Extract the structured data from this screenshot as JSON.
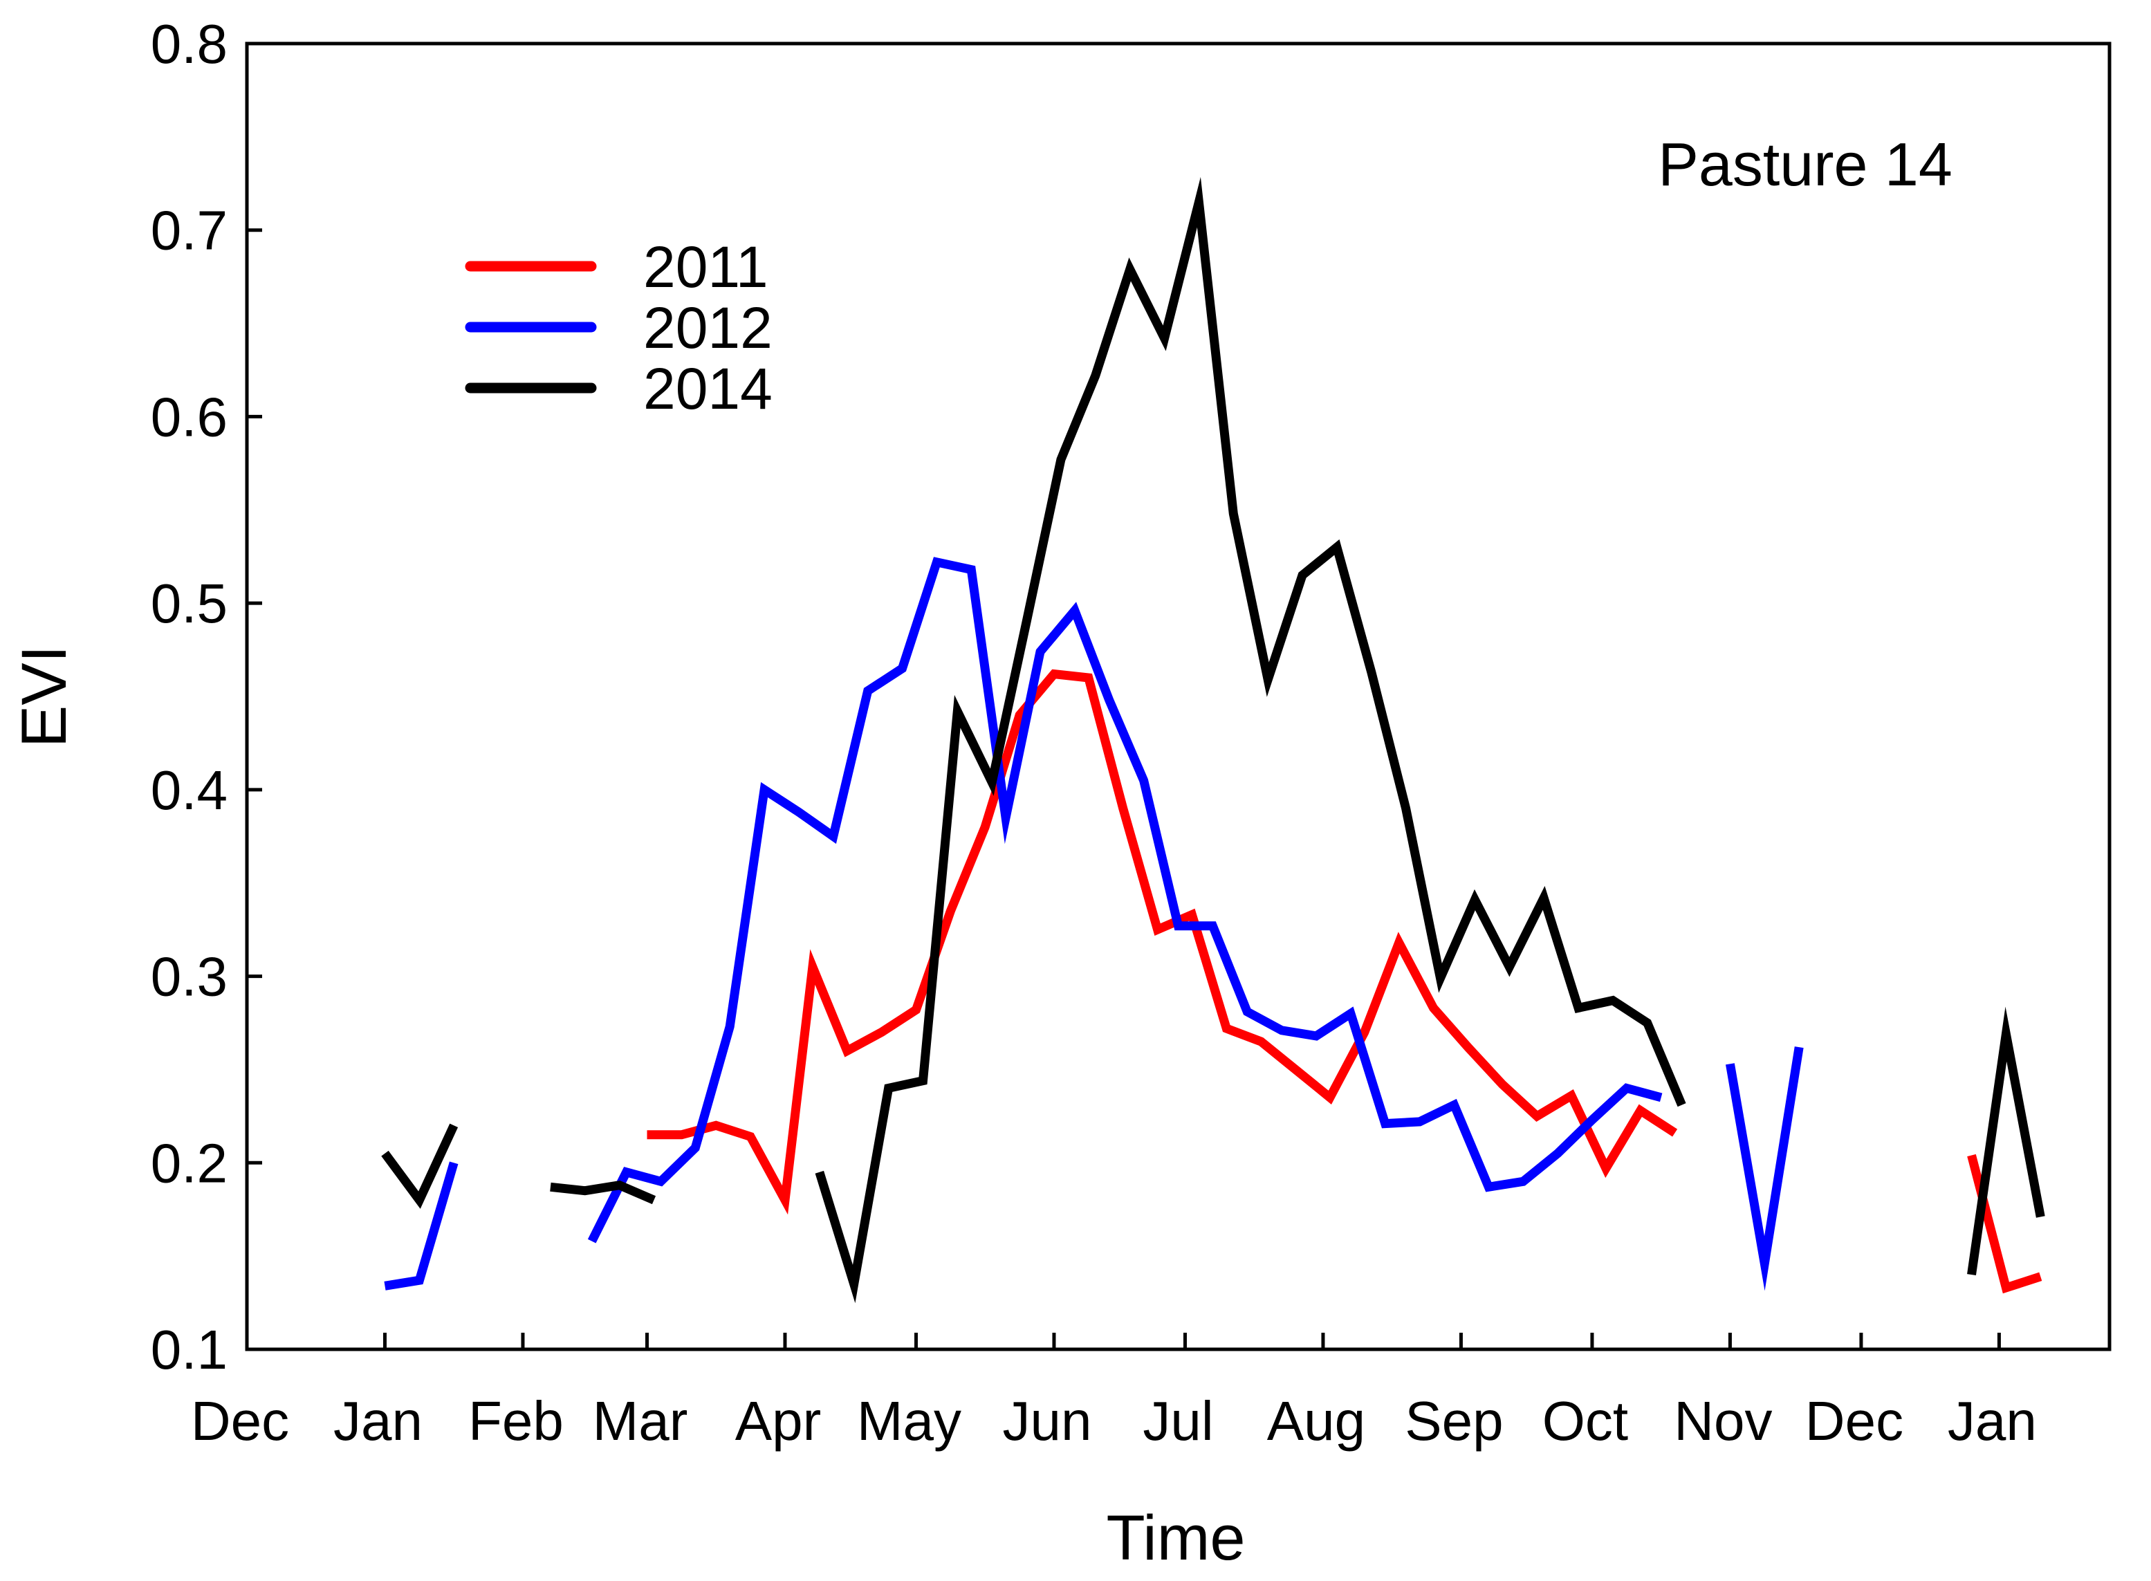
{
  "chart_data": {
    "type": "line",
    "title": "",
    "annotation": "Pasture 14",
    "xlabel": "Time",
    "ylabel": "EVI",
    "ylim": [
      0.1,
      0.8
    ],
    "yticks": [
      "0.1",
      "0.2",
      "0.3",
      "0.4",
      "0.5",
      "0.6",
      "0.7",
      "0.8"
    ],
    "xlim": [
      0,
      13.5
    ],
    "xticks": [
      {
        "value": 0.0,
        "label": "Dec"
      },
      {
        "value": 1.0,
        "label": "Jan"
      },
      {
        "value": 2.0,
        "label": "Feb"
      },
      {
        "value": 2.9,
        "label": "Mar"
      },
      {
        "value": 3.9,
        "label": "Apr"
      },
      {
        "value": 4.85,
        "label": "May"
      },
      {
        "value": 5.85,
        "label": "Jun"
      },
      {
        "value": 6.8,
        "label": "Jul"
      },
      {
        "value": 7.8,
        "label": "Aug"
      },
      {
        "value": 8.8,
        "label": "Sep"
      },
      {
        "value": 9.75,
        "label": "Oct"
      },
      {
        "value": 10.75,
        "label": "Nov"
      },
      {
        "value": 11.7,
        "label": "Dec"
      },
      {
        "value": 12.7,
        "label": "Jan"
      }
    ],
    "grid": false,
    "legend_position": "top-left",
    "series": [
      {
        "name": "2011",
        "color": "#ff0000",
        "segments": [
          [
            [
              2.9,
              0.215
            ],
            [
              3.15,
              0.215
            ],
            [
              3.4,
              0.22
            ],
            [
              3.65,
              0.214
            ],
            [
              3.9,
              0.18
            ],
            [
              4.1,
              0.305
            ],
            [
              4.35,
              0.26
            ],
            [
              4.6,
              0.27
            ],
            [
              4.85,
              0.282
            ],
            [
              5.1,
              0.335
            ],
            [
              5.35,
              0.38
            ],
            [
              5.6,
              0.44
            ],
            [
              5.85,
              0.462
            ],
            [
              6.1,
              0.46
            ],
            [
              6.35,
              0.39
            ],
            [
              6.6,
              0.325
            ],
            [
              6.85,
              0.333
            ],
            [
              7.1,
              0.272
            ],
            [
              7.35,
              0.265
            ],
            [
              7.6,
              0.25
            ],
            [
              7.85,
              0.235
            ],
            [
              8.1,
              0.27
            ],
            [
              8.35,
              0.318
            ],
            [
              8.6,
              0.283
            ],
            [
              8.85,
              0.262
            ],
            [
              9.1,
              0.242
            ],
            [
              9.35,
              0.225
            ],
            [
              9.6,
              0.236
            ],
            [
              9.85,
              0.197
            ],
            [
              10.1,
              0.228
            ],
            [
              10.35,
              0.216
            ]
          ],
          [
            [
              12.5,
              0.204
            ],
            [
              12.75,
              0.133
            ],
            [
              13.0,
              0.139
            ]
          ]
        ]
      },
      {
        "name": "2012",
        "color": "#0000ff",
        "segments": [
          [
            [
              1.0,
              0.134
            ],
            [
              1.25,
              0.137
            ],
            [
              1.5,
              0.2
            ]
          ],
          [
            [
              2.5,
              0.158
            ],
            [
              2.75,
              0.195
            ],
            [
              3.0,
              0.19
            ],
            [
              3.25,
              0.208
            ],
            [
              3.5,
              0.273
            ],
            [
              3.75,
              0.4
            ],
            [
              4.0,
              0.388
            ],
            [
              4.25,
              0.375
            ],
            [
              4.5,
              0.453
            ],
            [
              4.75,
              0.465
            ],
            [
              5.0,
              0.522
            ],
            [
              5.25,
              0.518
            ],
            [
              5.5,
              0.385
            ],
            [
              5.75,
              0.474
            ],
            [
              6.0,
              0.496
            ],
            [
              6.25,
              0.448
            ],
            [
              6.5,
              0.405
            ],
            [
              6.75,
              0.327
            ],
            [
              7.0,
              0.327
            ],
            [
              7.25,
              0.281
            ],
            [
              7.5,
              0.271
            ],
            [
              7.75,
              0.268
            ],
            [
              8.0,
              0.28
            ],
            [
              8.25,
              0.221
            ],
            [
              8.5,
              0.222
            ],
            [
              8.75,
              0.231
            ],
            [
              9.0,
              0.187
            ],
            [
              9.25,
              0.19
            ],
            [
              9.5,
              0.205
            ],
            [
              9.75,
              0.223
            ],
            [
              10.0,
              0.24
            ],
            [
              10.25,
              0.235
            ]
          ],
          [
            [
              10.75,
              0.253
            ],
            [
              11.0,
              0.146
            ],
            [
              11.25,
              0.262
            ]
          ]
        ]
      },
      {
        "name": "2014",
        "color": "#000000",
        "segments": [
          [
            [
              1.0,
              0.205
            ],
            [
              1.25,
              0.18
            ],
            [
              1.5,
              0.22
            ]
          ],
          [
            [
              2.2,
              0.187
            ],
            [
              2.45,
              0.185
            ],
            [
              2.7,
              0.188
            ],
            [
              2.95,
              0.18
            ]
          ],
          [
            [
              4.15,
              0.195
            ],
            [
              4.4,
              0.135
            ],
            [
              4.65,
              0.24
            ],
            [
              4.9,
              0.244
            ],
            [
              5.15,
              0.442
            ],
            [
              5.4,
              0.404
            ],
            [
              5.65,
              0.49
            ],
            [
              5.9,
              0.577
            ],
            [
              6.15,
              0.622
            ],
            [
              6.4,
              0.679
            ],
            [
              6.65,
              0.642
            ],
            [
              6.9,
              0.715
            ],
            [
              7.15,
              0.548
            ],
            [
              7.4,
              0.459
            ],
            [
              7.65,
              0.515
            ],
            [
              7.9,
              0.53
            ],
            [
              8.15,
              0.463
            ],
            [
              8.4,
              0.39
            ],
            [
              8.65,
              0.299
            ],
            [
              8.9,
              0.341
            ],
            [
              9.15,
              0.305
            ],
            [
              9.4,
              0.342
            ],
            [
              9.65,
              0.283
            ],
            [
              9.9,
              0.287
            ],
            [
              10.15,
              0.275
            ],
            [
              10.4,
              0.231
            ]
          ],
          [
            [
              12.5,
              0.14
            ],
            [
              12.75,
              0.269
            ],
            [
              13.0,
              0.171
            ]
          ]
        ]
      }
    ]
  }
}
